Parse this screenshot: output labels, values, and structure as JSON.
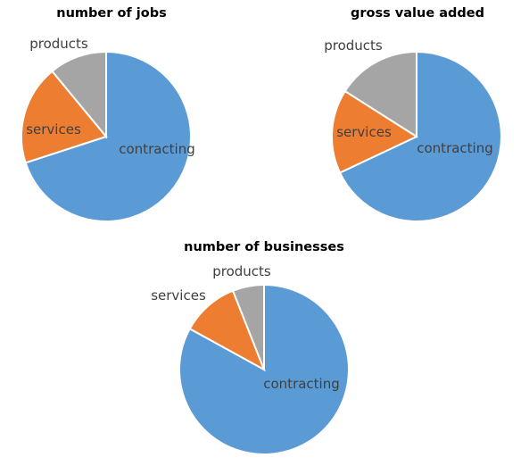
{
  "chart_data": [
    {
      "type": "pie",
      "title": "number of jobs",
      "series": [
        {
          "name": "contracting",
          "value": 70,
          "color": "#5b9bd5"
        },
        {
          "name": "services",
          "value": 19,
          "color": "#ed7d31"
        },
        {
          "name": "products",
          "value": 11,
          "color": "#a5a5a5"
        }
      ],
      "labels_on_slices": true,
      "legend": "none"
    },
    {
      "type": "pie",
      "title": "gross value added",
      "series": [
        {
          "name": "contracting",
          "value": 68,
          "color": "#5b9bd5"
        },
        {
          "name": "services",
          "value": 16,
          "color": "#ed7d31"
        },
        {
          "name": "products",
          "value": 16,
          "color": "#a5a5a5"
        }
      ],
      "labels_on_slices": true,
      "legend": "none"
    },
    {
      "type": "pie",
      "title": "number of businesses",
      "series": [
        {
          "name": "contracting",
          "value": 83,
          "color": "#5b9bd5"
        },
        {
          "name": "services",
          "value": 11,
          "color": "#ed7d31"
        },
        {
          "name": "products",
          "value": 6,
          "color": "#a5a5a5"
        }
      ],
      "labels_on_slices": true,
      "legend": "none"
    }
  ]
}
